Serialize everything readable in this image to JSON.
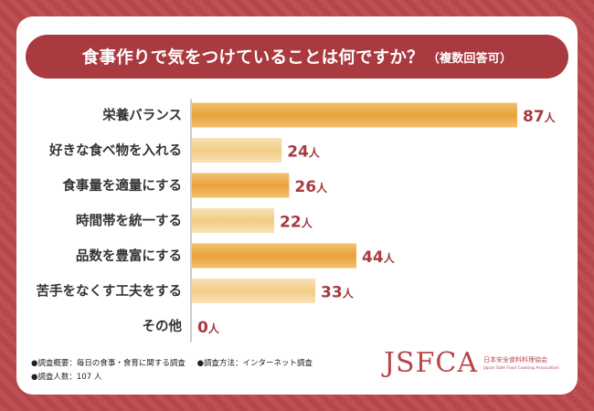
{
  "title": {
    "main": "食事作りで気をつけていることは何ですか？",
    "sub": "（複数回答可）"
  },
  "chart_data": {
    "type": "bar",
    "orientation": "horizontal",
    "categories": [
      "栄養バランス",
      "好きな食べ物を入れる",
      "食事量を適量にする",
      "時間帯を統一する",
      "品数を豊富にする",
      "苦手をなくす工夫をする",
      "その他"
    ],
    "values": [
      87,
      24,
      26,
      22,
      44,
      33,
      0
    ],
    "unit": "人",
    "xlim": [
      0,
      87
    ],
    "colors": {
      "dark": [
        "#e8a23c",
        "#f3c06e"
      ],
      "light": [
        "#f2cc86",
        "#f9e2b6"
      ]
    }
  },
  "notes": {
    "overview": "●調査概要：毎日の食事・食育に関する調査",
    "method": "●調査方法：インターネット調査",
    "count": "●調査人数：107 人"
  },
  "logo": {
    "mark": "JSFCA",
    "name_jp": "日本安全食料料理協会",
    "name_en": "Japan Safe Food Cooking Association"
  },
  "colors": {
    "background": "#b8454a",
    "title_bar": "#a93a40",
    "accent_text": "#a93a40"
  }
}
